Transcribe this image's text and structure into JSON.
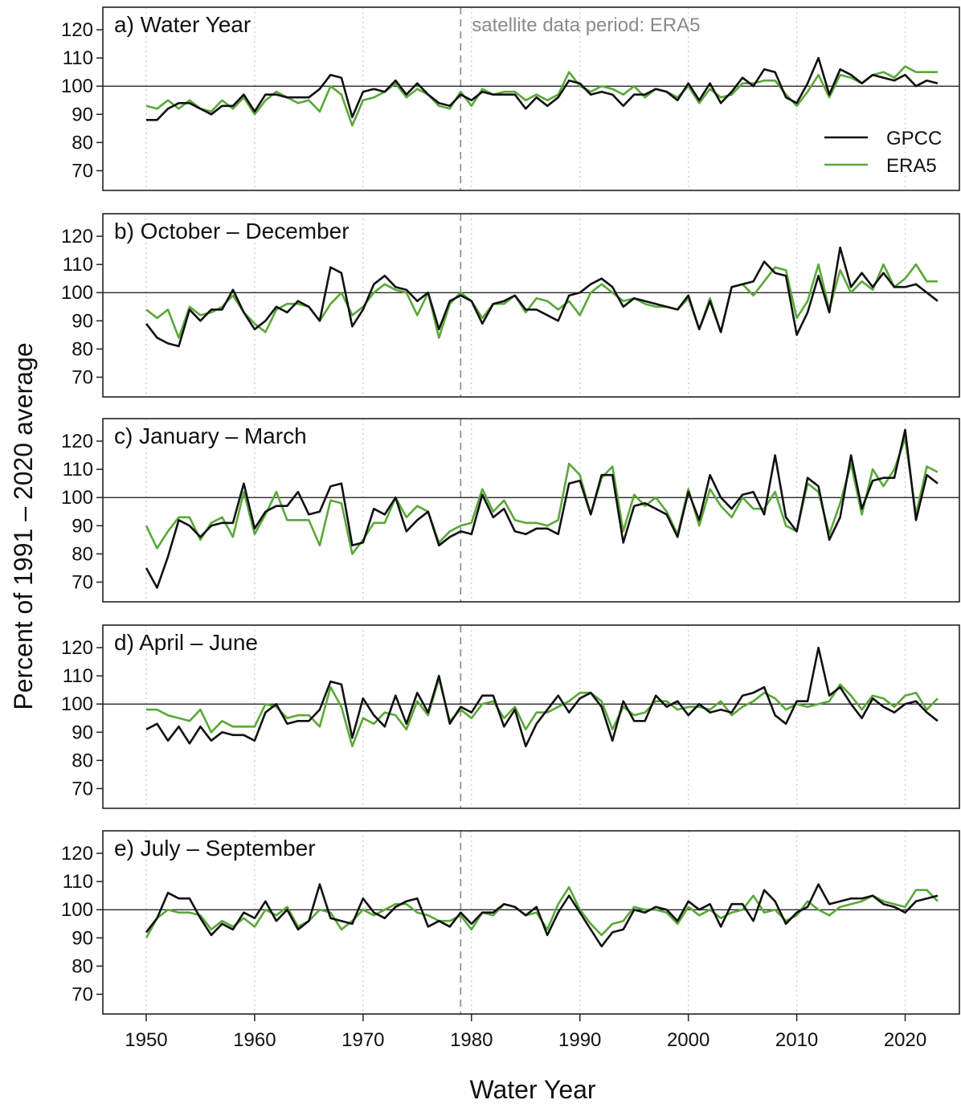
{
  "figure": {
    "ylabel": "Percent of 1991 – 2020 average",
    "xlabel": "Water Year",
    "annotation": "satellite data period: ERA5"
  },
  "chart_data": {
    "type": "line",
    "xlabel": "Water Year",
    "ylabel": "Percent of 1991 – 2020 average",
    "xlim": [
      1946,
      2025
    ],
    "ylim": [
      63,
      128
    ],
    "x_ticks": [
      1950,
      1960,
      1970,
      1980,
      1990,
      2000,
      2010,
      2020
    ],
    "y_ticks": [
      70,
      80,
      90,
      100,
      110,
      120
    ],
    "reference_line": 100,
    "satellite_period_start": 1979,
    "grid": "dotted vertical at decades",
    "legend": {
      "position": "top-right",
      "entries": [
        "GPCC",
        "ERA5"
      ]
    },
    "colors": {
      "GPCC": "#111111",
      "ERA5": "#5aa83a",
      "axis": "#222222",
      "annotation": "#8a8a8a"
    },
    "x": [
      1950,
      1951,
      1952,
      1953,
      1954,
      1955,
      1956,
      1957,
      1958,
      1959,
      1960,
      1961,
      1962,
      1963,
      1964,
      1965,
      1966,
      1967,
      1968,
      1969,
      1970,
      1971,
      1972,
      1973,
      1974,
      1975,
      1976,
      1977,
      1978,
      1979,
      1980,
      1981,
      1982,
      1983,
      1984,
      1985,
      1986,
      1987,
      1988,
      1989,
      1990,
      1991,
      1992,
      1993,
      1994,
      1995,
      1996,
      1997,
      1998,
      1999,
      2000,
      2001,
      2002,
      2003,
      2004,
      2005,
      2006,
      2007,
      2008,
      2009,
      2010,
      2011,
      2012,
      2013,
      2014,
      2015,
      2016,
      2017,
      2018,
      2019,
      2020,
      2021,
      2022,
      2023
    ],
    "panels": [
      {
        "title": "a) Water Year",
        "series": [
          {
            "name": "GPCC",
            "values": [
              88,
              88,
              92,
              94,
              94,
              92,
              90,
              93,
              93,
              97,
              91,
              97,
              97,
              96,
              96,
              96,
              99,
              104,
              103,
              89,
              98,
              99,
              98,
              102,
              97,
              101,
              97,
              94,
              93,
              97,
              95,
              98,
              97,
              97,
              97,
              92,
              96,
              93,
              96,
              102,
              101,
              97,
              98,
              97,
              93,
              97,
              97,
              99,
              98,
              95,
              101,
              95,
              101,
              94,
              98,
              103,
              100,
              106,
              105,
              96,
              94,
              101,
              110,
              97,
              106,
              104,
              101,
              104,
              103,
              102,
              104,
              100,
              102,
              101
            ]
          },
          {
            "name": "ERA5",
            "values": [
              93,
              92,
              95,
              92,
              95,
              92,
              91,
              95,
              92,
              96,
              90,
              95,
              98,
              96,
              94,
              95,
              91,
              100,
              97,
              86,
              95,
              96,
              98,
              101,
              96,
              99,
              97,
              93,
              92,
              98,
              93,
              99,
              97,
              98,
              98,
              95,
              97,
              95,
              97,
              105,
              100,
              98,
              100,
              99,
              97,
              100,
              96,
              99,
              98,
              96,
              100,
              94,
              99,
              96,
              97,
              101,
              101,
              102,
              102,
              97,
              93,
              98,
              104,
              96,
              104,
              103,
              101,
              104,
              105,
              103,
              107,
              105,
              105,
              105
            ]
          }
        ]
      },
      {
        "title": "b) October – December",
        "series": [
          {
            "name": "GPCC",
            "values": [
              89,
              84,
              82,
              81,
              94,
              90,
              94,
              94,
              101,
              93,
              87,
              90,
              95,
              93,
              97,
              95,
              90,
              109,
              107,
              88,
              94,
              103,
              106,
              102,
              101,
              97,
              100,
              87,
              97,
              99,
              97,
              89,
              96,
              97,
              99,
              94,
              94,
              92,
              90,
              99,
              100,
              103,
              105,
              102,
              95,
              98,
              97,
              96,
              95,
              94,
              99,
              87,
              97,
              86,
              102,
              103,
              104,
              111,
              107,
              106,
              85,
              93,
              106,
              93,
              116,
              102,
              107,
              102,
              107,
              102,
              102,
              103,
              100,
              97
            ]
          },
          {
            "name": "ERA5",
            "values": [
              94,
              91,
              94,
              84,
              95,
              92,
              93,
              95,
              99,
              93,
              89,
              86,
              94,
              96,
              96,
              95,
              90,
              96,
              100,
              92,
              95,
              100,
              103,
              101,
              100,
              92,
              100,
              84,
              96,
              100,
              97,
              91,
              96,
              96,
              99,
              93,
              98,
              97,
              94,
              97,
              92,
              100,
              103,
              100,
              97,
              98,
              96,
              95,
              95,
              94,
              98,
              87,
              98,
              86,
              102,
              103,
              99,
              104,
              109,
              108,
              91,
              97,
              110,
              94,
              108,
              100,
              104,
              101,
              110,
              102,
              105,
              110,
              104,
              104
            ]
          }
        ]
      },
      {
        "title": "c) January – March",
        "series": [
          {
            "name": "GPCC",
            "values": [
              75,
              68,
              79,
              92,
              90,
              86,
              90,
              91,
              91,
              105,
              89,
              95,
              97,
              97,
              102,
              94,
              95,
              104,
              105,
              83,
              84,
              96,
              94,
              100,
              88,
              92,
              95,
              83,
              86,
              88,
              87,
              101,
              93,
              96,
              88,
              87,
              89,
              89,
              87,
              105,
              106,
              94,
              108,
              108,
              84,
              97,
              98,
              96,
              94,
              86,
              102,
              92,
              108,
              100,
              96,
              101,
              102,
              94,
              115,
              93,
              88,
              107,
              104,
              85,
              93,
              115,
              96,
              106,
              107,
              107,
              124,
              92,
              108,
              105
            ]
          },
          {
            "name": "ERA5",
            "values": [
              90,
              82,
              88,
              93,
              93,
              85,
              91,
              93,
              86,
              102,
              87,
              94,
              102,
              92,
              92,
              92,
              83,
              99,
              98,
              80,
              85,
              91,
              91,
              100,
              93,
              97,
              95,
              84,
              88,
              90,
              91,
              103,
              95,
              99,
              92,
              91,
              91,
              90,
              92,
              112,
              108,
              94,
              107,
              111,
              88,
              101,
              97,
              100,
              95,
              87,
              103,
              90,
              103,
              97,
              93,
              100,
              96,
              96,
              102,
              90,
              88,
              105,
              102,
              87,
              98,
              112,
              94,
              110,
              104,
              110,
              121,
              94,
              111,
              109
            ]
          }
        ]
      },
      {
        "title": "d) April – June",
        "series": [
          {
            "name": "GPCC",
            "values": [
              91,
              93,
              87,
              92,
              86,
              92,
              87,
              90,
              89,
              89,
              87,
              97,
              100,
              93,
              94,
              94,
              98,
              108,
              107,
              88,
              102,
              96,
              92,
              103,
              93,
              104,
              97,
              110,
              93,
              99,
              97,
              103,
              103,
              92,
              98,
              85,
              93,
              98,
              103,
              97,
              102,
              104,
              99,
              87,
              101,
              94,
              94,
              103,
              99,
              101,
              96,
              100,
              97,
              98,
              97,
              103,
              104,
              106,
              96,
              93,
              101,
              101,
              120,
              103,
              106,
              100,
              95,
              102,
              99,
              97,
              100,
              101,
              97,
              94
            ]
          },
          {
            "name": "ERA5",
            "values": [
              98,
              98,
              96,
              95,
              94,
              98,
              90,
              94,
              92,
              92,
              92,
              100,
              99,
              95,
              96,
              96,
              92,
              106,
              99,
              85,
              95,
              93,
              97,
              96,
              91,
              101,
              96,
              109,
              94,
              98,
              95,
              100,
              101,
              95,
              99,
              91,
              97,
              97,
              99,
              101,
              104,
              104,
              101,
              91,
              99,
              96,
              97,
              101,
              101,
              98,
              99,
              99,
              98,
              101,
              96,
              99,
              101,
              104,
              102,
              98,
              100,
              99,
              100,
              101,
              107,
              103,
              98,
              103,
              102,
              99,
              103,
              104,
              98,
              102
            ]
          }
        ]
      },
      {
        "title": "e) July – September",
        "series": [
          {
            "name": "GPCC",
            "values": [
              92,
              97,
              106,
              104,
              104,
              97,
              91,
              95,
              93,
              99,
              97,
              103,
              96,
              100,
              93,
              96,
              109,
              97,
              96,
              95,
              104,
              99,
              97,
              101,
              103,
              104,
              94,
              96,
              94,
              99,
              95,
              99,
              99,
              102,
              101,
              98,
              101,
              91,
              99,
              105,
              99,
              93,
              87,
              92,
              93,
              100,
              99,
              101,
              100,
              96,
              103,
              100,
              102,
              94,
              102,
              102,
              96,
              107,
              103,
              95,
              99,
              101,
              109,
              102,
              103,
              104,
              104,
              105,
              102,
              101,
              99,
              103,
              104,
              105
            ]
          },
          {
            "name": "ERA5",
            "values": [
              90,
              97,
              100,
              99,
              99,
              98,
              93,
              96,
              94,
              97,
              94,
              100,
              98,
              101,
              94,
              96,
              100,
              99,
              93,
              96,
              100,
              98,
              100,
              102,
              102,
              99,
              98,
              96,
              96,
              98,
              93,
              99,
              98,
              102,
              101,
              98,
              99,
              93,
              102,
              108,
              100,
              95,
              91,
              95,
              96,
              101,
              100,
              100,
              99,
              95,
              101,
              98,
              100,
              97,
              99,
              100,
              105,
              99,
              100,
              96,
              98,
              103,
              100,
              98,
              101,
              102,
              103,
              105,
              103,
              102,
              101,
              107,
              107,
              103
            ]
          }
        ]
      }
    ]
  }
}
